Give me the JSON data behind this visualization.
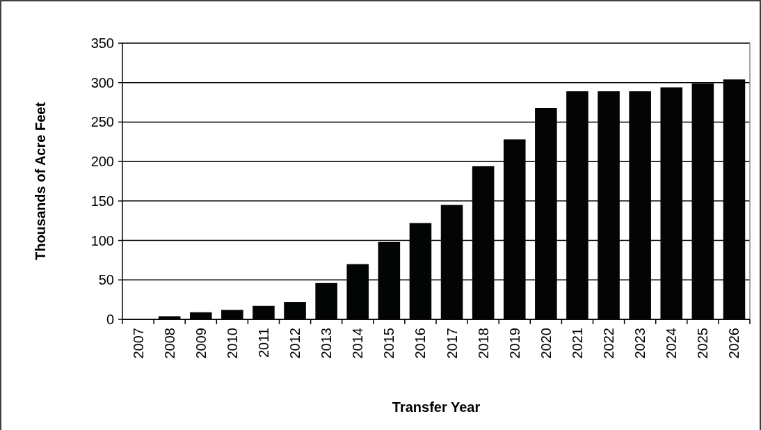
{
  "chart_data": {
    "type": "bar",
    "xlabel": "Transfer Year",
    "ylabel": "Thousands of Acre Feet",
    "categories": [
      "2007",
      "2008",
      "2009",
      "2010",
      "2011",
      "2012",
      "2013",
      "2014",
      "2015",
      "2016",
      "2017",
      "2018",
      "2019",
      "2020",
      "2021",
      "2022",
      "2023",
      "2024",
      "2025",
      "2026"
    ],
    "values": [
      0,
      4,
      9,
      12,
      17,
      22,
      46,
      70,
      98,
      122,
      145,
      194,
      228,
      268,
      289,
      289,
      289,
      294,
      299,
      304
    ],
    "color": "#030504",
    "ylim": [
      0,
      350
    ],
    "yticks": [
      0,
      50,
      100,
      150,
      200,
      250,
      300,
      350
    ],
    "grid": "y"
  }
}
